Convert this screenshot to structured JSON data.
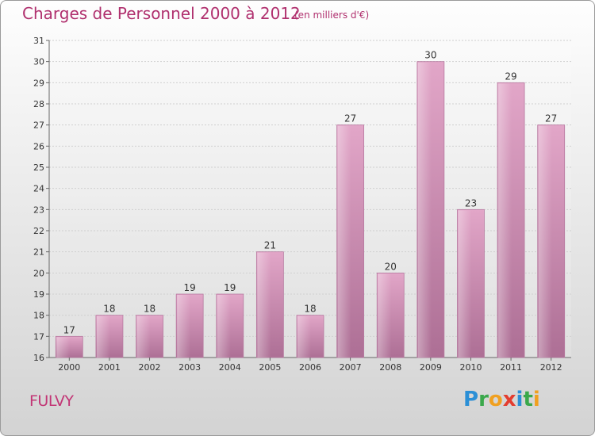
{
  "title": "Charges de Personnel 2000 à 2012",
  "subtitle": "(en milliers d'€)",
  "commune": "FULVY",
  "logo": "Proxiti",
  "colors": {
    "bar": "#d890b8",
    "title": "#b0306e",
    "grid": "#c8c8c8"
  },
  "chart_data": {
    "type": "bar",
    "title": "Charges de Personnel 2000 à 2012",
    "subtitle": "(en milliers d'€)",
    "categories": [
      "2000",
      "2001",
      "2002",
      "2003",
      "2004",
      "2005",
      "2006",
      "2007",
      "2008",
      "2009",
      "2010",
      "2011",
      "2012"
    ],
    "values": [
      17,
      18,
      18,
      19,
      19,
      21,
      18,
      27,
      20,
      30,
      23,
      29,
      27
    ],
    "ylim": [
      16,
      31
    ],
    "yticks": [
      16,
      17,
      18,
      19,
      20,
      21,
      22,
      23,
      24,
      25,
      26,
      27,
      28,
      29,
      30,
      31
    ],
    "grid": true,
    "data_labels": true
  }
}
